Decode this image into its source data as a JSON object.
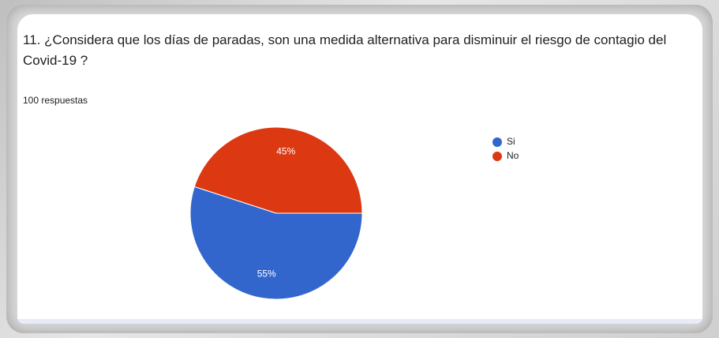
{
  "chart_data": {
    "type": "pie",
    "title": "11. ¿Considera que los días de paradas, son una medida alternativa para disminuir el riesgo de contagio del Covid-19 ?",
    "subtitle": "100 respuestas",
    "categories": [
      "Si",
      "No"
    ],
    "values": [
      55,
      45
    ],
    "value_labels": [
      "55%",
      "45%"
    ],
    "colors": [
      "#3366cc",
      "#dc3912"
    ],
    "start_angle": 90,
    "legend": "right"
  }
}
